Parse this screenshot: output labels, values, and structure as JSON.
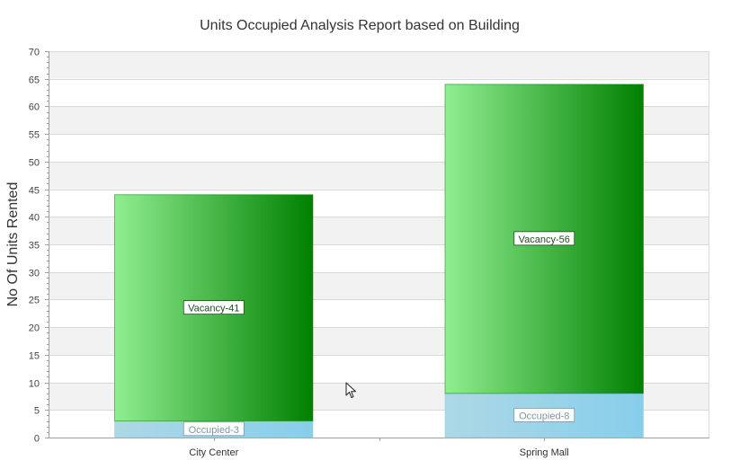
{
  "chart_data": {
    "type": "bar",
    "stacked": true,
    "title": "Units Occupied Analysis Report based on Building",
    "xlabel": "",
    "ylabel": "No Of Units Rented",
    "ylim": [
      0,
      70
    ],
    "ytick_step": 5,
    "grid": true,
    "legend": "none",
    "categories": [
      "City Center",
      "Spring Mall"
    ],
    "series": [
      {
        "key": "occupied",
        "values": [
          3,
          8
        ],
        "labels": [
          "Occupied-3",
          "Occupied-8"
        ],
        "color_light": "#add8e6",
        "color_dark": "#87ceeb",
        "label_color": "#7b96a8"
      },
      {
        "key": "vacancy",
        "values": [
          41,
          56
        ],
        "labels": [
          "Vacancy-41",
          "Vacancy-56"
        ],
        "color_light": "#90ee90",
        "color_dark": "#008000",
        "label_color": "#1e4d1e"
      }
    ]
  },
  "colors": {
    "band_alt": "#f2f2f2",
    "gridline": "#d9d9d9",
    "axis": "#a0a0a0"
  },
  "icons": {
    "cursor": "mouse-pointer-icon"
  }
}
